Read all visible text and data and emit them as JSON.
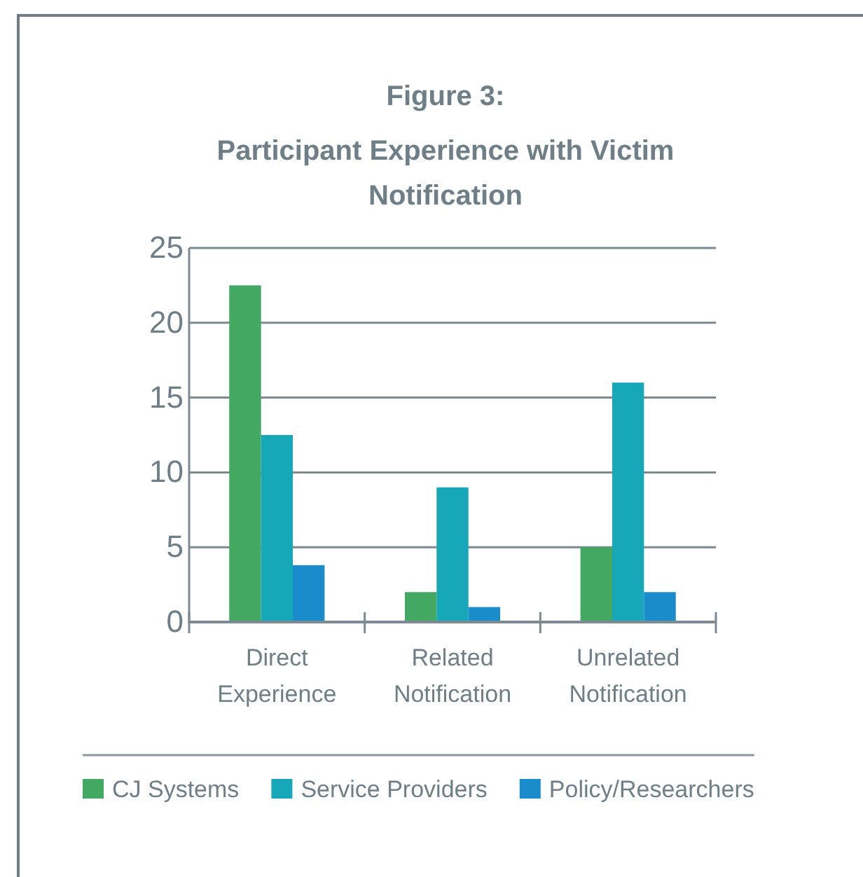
{
  "chart_data": {
    "type": "bar",
    "title": "Figure 3:",
    "subtitle": "Participant Experience with Victim Notification",
    "categories": [
      "Direct Experience",
      "Related Notification",
      "Unrelated Notification"
    ],
    "series": [
      {
        "name": "CJ Systems",
        "color": "#43a862",
        "values": [
          22.5,
          2,
          5
        ]
      },
      {
        "name": "Service Providers",
        "color": "#16a7b9",
        "values": [
          12.5,
          9,
          16
        ]
      },
      {
        "name": "Policy/Researchers",
        "color": "#1a8bcb",
        "values": [
          3.8,
          1,
          2
        ]
      }
    ],
    "ylim": [
      0,
      25
    ],
    "yticks": [
      0,
      5,
      10,
      15,
      20,
      25
    ],
    "grid": "y",
    "legend": "bottom"
  }
}
